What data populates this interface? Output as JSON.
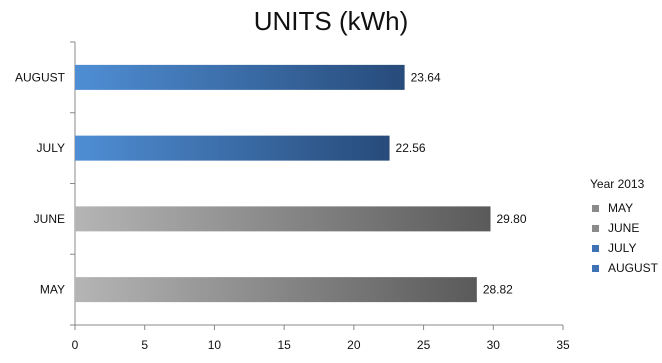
{
  "chart_data": {
    "type": "bar",
    "orientation": "horizontal",
    "title": "UNITS (kWh)",
    "categories": [
      "MAY",
      "JUNE",
      "JULY",
      "AUGUST"
    ],
    "values": [
      28.82,
      29.8,
      22.56,
      23.64
    ],
    "value_labels": [
      "28.82",
      "29.80",
      "22.56",
      "23.64"
    ],
    "xlim": [
      0,
      35
    ],
    "x_ticks": [
      "0",
      "5",
      "10",
      "15",
      "20",
      "25",
      "30",
      "35"
    ],
    "grid": false,
    "legend": {
      "title": "Year 2013",
      "position": "right",
      "entries": [
        "MAY",
        "JUNE",
        "JULY",
        "AUGUST"
      ]
    },
    "colors": {
      "MAY": [
        "#b5b5b5",
        "#5a5a5a"
      ],
      "JUNE": [
        "#b5b5b5",
        "#5a5a5a"
      ],
      "JULY": [
        "#4f8ed4",
        "#274b7a"
      ],
      "AUGUST": [
        "#4f8ed4",
        "#274b7a"
      ]
    }
  }
}
